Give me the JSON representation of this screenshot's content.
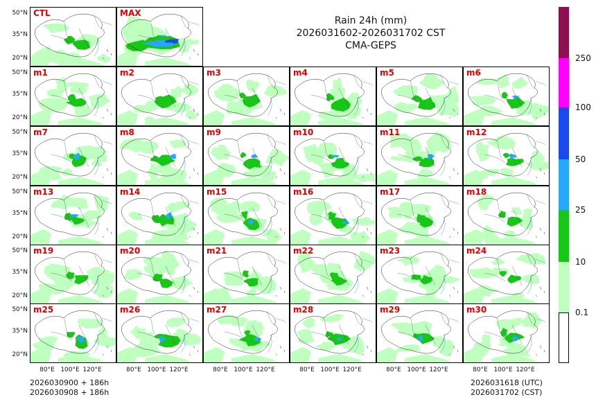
{
  "title": {
    "line1": "Rain 24h (mm)",
    "line2": "2026031602-2026031702 CST",
    "line3": "CMA-GEPS"
  },
  "panels": [
    "CTL",
    "MAX",
    "m1",
    "m2",
    "m3",
    "m4",
    "m5",
    "m6",
    "m7",
    "m8",
    "m9",
    "m10",
    "m11",
    "m12",
    "m13",
    "m14",
    "m15",
    "m16",
    "m17",
    "m18",
    "m19",
    "m20",
    "m21",
    "m22",
    "m23",
    "m24",
    "m25",
    "m26",
    "m27",
    "m28",
    "m29",
    "m30"
  ],
  "y_ticks": [
    "50°N",
    "35°N",
    "20°N"
  ],
  "x_ticks": [
    "80°E",
    "100°E",
    "120°E"
  ],
  "footer": {
    "left_line1": "2026030900 + 186h",
    "left_line2": "2026030908 + 186h",
    "right_line1": "2026031618 (UTC)",
    "right_line2": "2026031702 (CST)"
  },
  "colorbar": {
    "labels": [
      "0.1",
      "10",
      "25",
      "50",
      "100",
      "250"
    ],
    "colors": [
      "#ffffff",
      "#bfffbf",
      "#18c618",
      "#28a8f8",
      "#1c48f0",
      "#ff00ff",
      "#8c1050"
    ]
  }
}
